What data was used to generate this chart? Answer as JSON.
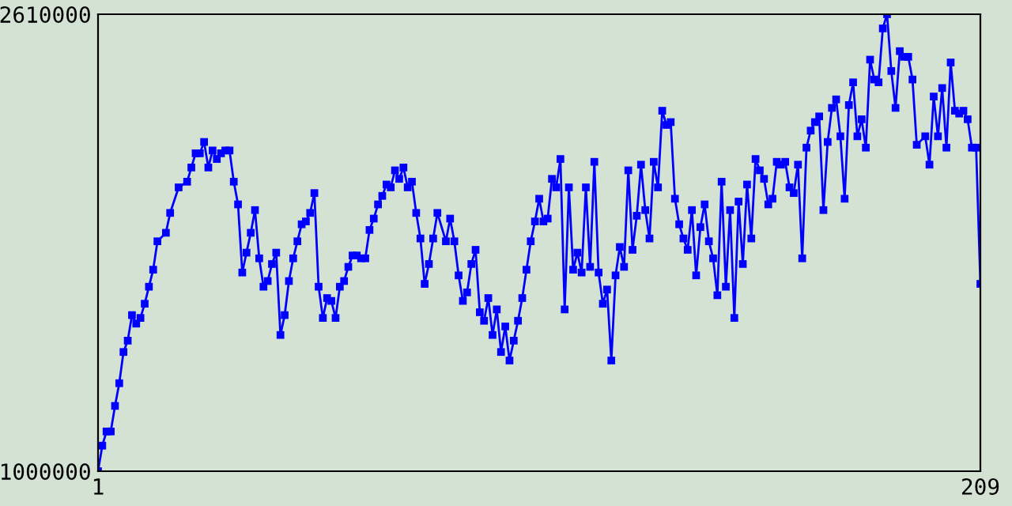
{
  "chart_data": {
    "type": "line",
    "series": [
      {
        "color": "#0000ff",
        "x": [
          1,
          2,
          3,
          4,
          5,
          6,
          7,
          8,
          9,
          10,
          11,
          12,
          13,
          14,
          15,
          17,
          18,
          20,
          22,
          23,
          24,
          25,
          26,
          27,
          28,
          29,
          30,
          31,
          32,
          33,
          34,
          35,
          36,
          37,
          38,
          39,
          40,
          41,
          42,
          43,
          44,
          45,
          46,
          47,
          48,
          49,
          50,
          51,
          52,
          53,
          54,
          55,
          56,
          57,
          58,
          59,
          60,
          61,
          62,
          63,
          64,
          65,
          66,
          67,
          68,
          69,
          70,
          71,
          72,
          73,
          74,
          75,
          76,
          77,
          78,
          79,
          80,
          81,
          83,
          84,
          85,
          86,
          87,
          88,
          89,
          90,
          91,
          92,
          93,
          94,
          95,
          96,
          97,
          98,
          99,
          100,
          101,
          102,
          103,
          104,
          105,
          106,
          107,
          108,
          109,
          110,
          111,
          112,
          113,
          114,
          115,
          116,
          117,
          118,
          119,
          120,
          121,
          122,
          123,
          124,
          125,
          126,
          127,
          128,
          129,
          130,
          131,
          132,
          133,
          134,
          135,
          136,
          137,
          138,
          139,
          140,
          141,
          142,
          143,
          144,
          145,
          146,
          147,
          148,
          149,
          150,
          151,
          152,
          153,
          154,
          155,
          156,
          157,
          158,
          159,
          160,
          161,
          162,
          163,
          164,
          165,
          166,
          167,
          168,
          169,
          170,
          171,
          172,
          173,
          174,
          175,
          176,
          177,
          178,
          179,
          180,
          181,
          182,
          183,
          184,
          185,
          186,
          187,
          188,
          189,
          190,
          191,
          192,
          193,
          194,
          196,
          197,
          198,
          199,
          200,
          201,
          202,
          203,
          204,
          205,
          206,
          207,
          208,
          209
        ],
        "values": [
          1000000,
          1090000,
          1140000,
          1140000,
          1230000,
          1310000,
          1420000,
          1460000,
          1550000,
          1520000,
          1540000,
          1590000,
          1650000,
          1710000,
          1810000,
          1840000,
          1910000,
          2000000,
          2020000,
          2070000,
          2120000,
          2120000,
          2160000,
          2070000,
          2130000,
          2100000,
          2120000,
          2130000,
          2130000,
          2020000,
          1940000,
          1700000,
          1770000,
          1840000,
          1920000,
          1750000,
          1650000,
          1670000,
          1730000,
          1770000,
          1480000,
          1550000,
          1670000,
          1750000,
          1810000,
          1870000,
          1880000,
          1910000,
          1980000,
          1650000,
          1540000,
          1610000,
          1600000,
          1540000,
          1650000,
          1670000,
          1720000,
          1760000,
          1760000,
          1750000,
          1750000,
          1850000,
          1890000,
          1940000,
          1970000,
          2010000,
          2000000,
          2060000,
          2030000,
          2070000,
          2000000,
          2020000,
          1910000,
          1820000,
          1660000,
          1730000,
          1820000,
          1910000,
          1810000,
          1890000,
          1810000,
          1690000,
          1600000,
          1630000,
          1730000,
          1780000,
          1560000,
          1530000,
          1610000,
          1480000,
          1570000,
          1420000,
          1510000,
          1390000,
          1460000,
          1530000,
          1610000,
          1710000,
          1810000,
          1880000,
          1960000,
          1880000,
          1890000,
          2030000,
          2000000,
          2100000,
          1570000,
          2000000,
          1710000,
          1770000,
          1700000,
          2000000,
          1720000,
          2090000,
          1700000,
          1590000,
          1640000,
          1390000,
          1690000,
          1790000,
          1720000,
          2060000,
          1780000,
          1900000,
          2080000,
          1920000,
          1820000,
          2090000,
          2000000,
          2270000,
          2220000,
          2230000,
          1960000,
          1870000,
          1820000,
          1780000,
          1920000,
          1690000,
          1860000,
          1940000,
          1810000,
          1750000,
          1620000,
          2020000,
          1650000,
          1920000,
          1540000,
          1950000,
          1730000,
          2010000,
          1820000,
          2100000,
          2060000,
          2030000,
          1940000,
          1960000,
          2090000,
          2080000,
          2090000,
          2000000,
          1980000,
          2080000,
          1750000,
          2140000,
          2200000,
          2230000,
          2250000,
          1920000,
          2160000,
          2280000,
          2310000,
          2180000,
          1960000,
          2290000,
          2370000,
          2180000,
          2240000,
          2140000,
          2450000,
          2380000,
          2370000,
          2560000,
          2610000,
          2410000,
          2280000,
          2480000,
          2460000,
          2460000,
          2380000,
          2150000,
          2180000,
          2080000,
          2320000,
          2180000,
          2350000,
          2140000,
          2440000,
          2270000,
          2260000,
          2270000,
          2240000,
          2140000,
          2140000,
          1660000
        ]
      }
    ],
    "xlim": [
      1,
      209
    ],
    "xticks": [
      1,
      209
    ],
    "ylim": [
      1000000,
      2610000
    ],
    "yticks": [
      1000000,
      2610000
    ],
    "marker": "square",
    "line_style": "solid",
    "grid": false
  }
}
